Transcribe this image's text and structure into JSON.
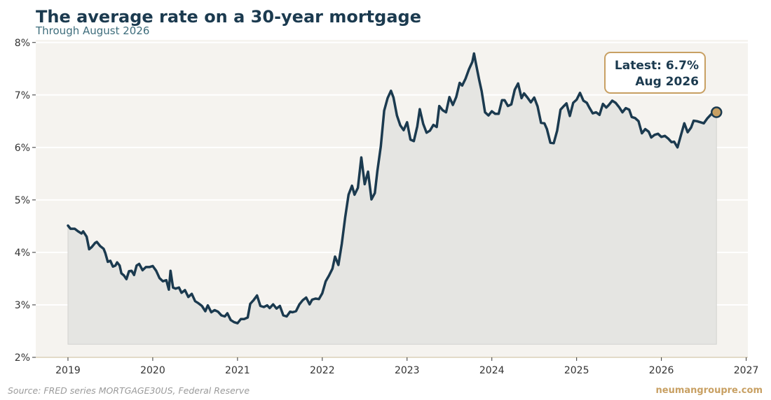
{
  "header": {
    "title": "The average rate on a 30-year mortgage",
    "subtitle": "Through August 2026"
  },
  "callout": {
    "line1": "Latest: 6.7%",
    "line2": "Aug 2026"
  },
  "footer": {
    "source": "Source: FRED series MORTGAGE30US, Federal Reserve",
    "credit": "neumangroupre.com"
  },
  "colors": {
    "line": "#1b3a4f",
    "fill": "#e5e5e2",
    "plot_background": "#f5f3ef",
    "grid": "#ffffff",
    "accent": "#c8a063",
    "axis_text": "#333333"
  },
  "chart_data": {
    "type": "area",
    "title": "The average rate on a 30-year mortgage",
    "subtitle": "Through August 2026",
    "xlabel": "",
    "ylabel": "",
    "x_ticks": [
      "2019",
      "2020",
      "2021",
      "2022",
      "2023",
      "2024",
      "2025",
      "2026",
      "2027"
    ],
    "y_ticks": [
      "2%",
      "3%",
      "4%",
      "5%",
      "6%",
      "7%",
      "8%"
    ],
    "xlim": [
      2018.62,
      2027.02
    ],
    "ylim": [
      2.0,
      8.05
    ],
    "grid": "horizontal",
    "latest_point": {
      "x": 2026.65,
      "y": 6.67
    },
    "series": [
      {
        "points": [
          [
            2019.0,
            4.51
          ],
          [
            2019.03,
            4.45
          ],
          [
            2019.08,
            4.45
          ],
          [
            2019.12,
            4.4
          ],
          [
            2019.16,
            4.36
          ],
          [
            2019.18,
            4.4
          ],
          [
            2019.22,
            4.3
          ],
          [
            2019.25,
            4.06
          ],
          [
            2019.28,
            4.1
          ],
          [
            2019.32,
            4.18
          ],
          [
            2019.34,
            4.2
          ],
          [
            2019.38,
            4.12
          ],
          [
            2019.42,
            4.07
          ],
          [
            2019.44,
            3.99
          ],
          [
            2019.47,
            3.82
          ],
          [
            2019.5,
            3.84
          ],
          [
            2019.53,
            3.73
          ],
          [
            2019.56,
            3.75
          ],
          [
            2019.58,
            3.81
          ],
          [
            2019.61,
            3.75
          ],
          [
            2019.63,
            3.6
          ],
          [
            2019.66,
            3.56
          ],
          [
            2019.69,
            3.49
          ],
          [
            2019.72,
            3.64
          ],
          [
            2019.75,
            3.65
          ],
          [
            2019.78,
            3.57
          ],
          [
            2019.81,
            3.75
          ],
          [
            2019.84,
            3.78
          ],
          [
            2019.88,
            3.66
          ],
          [
            2019.92,
            3.72
          ],
          [
            2019.96,
            3.72
          ],
          [
            2020.0,
            3.74
          ],
          [
            2020.04,
            3.65
          ],
          [
            2020.08,
            3.51
          ],
          [
            2020.12,
            3.45
          ],
          [
            2020.16,
            3.47
          ],
          [
            2020.19,
            3.29
          ],
          [
            2020.21,
            3.65
          ],
          [
            2020.24,
            3.33
          ],
          [
            2020.27,
            3.31
          ],
          [
            2020.31,
            3.33
          ],
          [
            2020.34,
            3.23
          ],
          [
            2020.38,
            3.28
          ],
          [
            2020.42,
            3.15
          ],
          [
            2020.46,
            3.21
          ],
          [
            2020.5,
            3.07
          ],
          [
            2020.54,
            3.03
          ],
          [
            2020.58,
            2.98
          ],
          [
            2020.62,
            2.88
          ],
          [
            2020.65,
            2.99
          ],
          [
            2020.69,
            2.86
          ],
          [
            2020.73,
            2.9
          ],
          [
            2020.77,
            2.87
          ],
          [
            2020.81,
            2.8
          ],
          [
            2020.85,
            2.78
          ],
          [
            2020.88,
            2.84
          ],
          [
            2020.92,
            2.71
          ],
          [
            2020.96,
            2.67
          ],
          [
            2021.0,
            2.65
          ],
          [
            2021.04,
            2.73
          ],
          [
            2021.08,
            2.73
          ],
          [
            2021.12,
            2.76
          ],
          [
            2021.15,
            3.02
          ],
          [
            2021.19,
            3.09
          ],
          [
            2021.23,
            3.18
          ],
          [
            2021.27,
            2.98
          ],
          [
            2021.31,
            2.96
          ],
          [
            2021.35,
            2.99
          ],
          [
            2021.38,
            2.94
          ],
          [
            2021.42,
            3.01
          ],
          [
            2021.46,
            2.93
          ],
          [
            2021.5,
            2.98
          ],
          [
            2021.54,
            2.8
          ],
          [
            2021.58,
            2.78
          ],
          [
            2021.62,
            2.87
          ],
          [
            2021.65,
            2.86
          ],
          [
            2021.69,
            2.88
          ],
          [
            2021.73,
            3.01
          ],
          [
            2021.77,
            3.09
          ],
          [
            2021.81,
            3.14
          ],
          [
            2021.85,
            3.01
          ],
          [
            2021.88,
            3.1
          ],
          [
            2021.92,
            3.12
          ],
          [
            2021.96,
            3.11
          ],
          [
            2022.0,
            3.22
          ],
          [
            2022.04,
            3.45
          ],
          [
            2022.08,
            3.56
          ],
          [
            2022.12,
            3.69
          ],
          [
            2022.15,
            3.92
          ],
          [
            2022.19,
            3.76
          ],
          [
            2022.23,
            4.16
          ],
          [
            2022.27,
            4.67
          ],
          [
            2022.31,
            5.1
          ],
          [
            2022.35,
            5.27
          ],
          [
            2022.38,
            5.1
          ],
          [
            2022.42,
            5.23
          ],
          [
            2022.46,
            5.81
          ],
          [
            2022.5,
            5.3
          ],
          [
            2022.54,
            5.54
          ],
          [
            2022.58,
            5.01
          ],
          [
            2022.62,
            5.13
          ],
          [
            2022.65,
            5.55
          ],
          [
            2022.69,
            6.02
          ],
          [
            2022.73,
            6.7
          ],
          [
            2022.77,
            6.94
          ],
          [
            2022.81,
            7.08
          ],
          [
            2022.84,
            6.95
          ],
          [
            2022.88,
            6.61
          ],
          [
            2022.92,
            6.42
          ],
          [
            2022.96,
            6.33
          ],
          [
            2023.0,
            6.48
          ],
          [
            2023.04,
            6.15
          ],
          [
            2023.08,
            6.12
          ],
          [
            2023.12,
            6.4
          ],
          [
            2023.15,
            6.73
          ],
          [
            2023.19,
            6.45
          ],
          [
            2023.23,
            6.28
          ],
          [
            2023.27,
            6.32
          ],
          [
            2023.31,
            6.43
          ],
          [
            2023.35,
            6.39
          ],
          [
            2023.38,
            6.79
          ],
          [
            2023.42,
            6.71
          ],
          [
            2023.46,
            6.67
          ],
          [
            2023.5,
            6.96
          ],
          [
            2023.54,
            6.81
          ],
          [
            2023.58,
            6.96
          ],
          [
            2023.62,
            7.23
          ],
          [
            2023.65,
            7.18
          ],
          [
            2023.69,
            7.31
          ],
          [
            2023.73,
            7.49
          ],
          [
            2023.77,
            7.63
          ],
          [
            2023.79,
            7.79
          ],
          [
            2023.81,
            7.62
          ],
          [
            2023.85,
            7.29
          ],
          [
            2023.88,
            7.07
          ],
          [
            2023.92,
            6.67
          ],
          [
            2023.96,
            6.61
          ],
          [
            2024.0,
            6.69
          ],
          [
            2024.04,
            6.64
          ],
          [
            2024.08,
            6.64
          ],
          [
            2024.12,
            6.9
          ],
          [
            2024.15,
            6.9
          ],
          [
            2024.19,
            6.79
          ],
          [
            2024.23,
            6.82
          ],
          [
            2024.27,
            7.1
          ],
          [
            2024.31,
            7.22
          ],
          [
            2024.35,
            6.94
          ],
          [
            2024.38,
            7.03
          ],
          [
            2024.42,
            6.95
          ],
          [
            2024.46,
            6.86
          ],
          [
            2024.5,
            6.95
          ],
          [
            2024.54,
            6.78
          ],
          [
            2024.58,
            6.47
          ],
          [
            2024.62,
            6.46
          ],
          [
            2024.65,
            6.35
          ],
          [
            2024.69,
            6.09
          ],
          [
            2024.73,
            6.08
          ],
          [
            2024.77,
            6.32
          ],
          [
            2024.81,
            6.72
          ],
          [
            2024.85,
            6.79
          ],
          [
            2024.88,
            6.84
          ],
          [
            2024.92,
            6.6
          ],
          [
            2024.96,
            6.85
          ],
          [
            2025.0,
            6.91
          ],
          [
            2025.04,
            7.04
          ],
          [
            2025.08,
            6.89
          ],
          [
            2025.12,
            6.85
          ],
          [
            2025.15,
            6.76
          ],
          [
            2025.19,
            6.65
          ],
          [
            2025.23,
            6.67
          ],
          [
            2025.27,
            6.62
          ],
          [
            2025.31,
            6.83
          ],
          [
            2025.35,
            6.76
          ],
          [
            2025.38,
            6.81
          ],
          [
            2025.42,
            6.89
          ],
          [
            2025.46,
            6.85
          ],
          [
            2025.5,
            6.77
          ],
          [
            2025.54,
            6.67
          ],
          [
            2025.58,
            6.75
          ],
          [
            2025.62,
            6.72
          ],
          [
            2025.65,
            6.58
          ],
          [
            2025.69,
            6.56
          ],
          [
            2025.73,
            6.5
          ],
          [
            2025.77,
            6.27
          ],
          [
            2025.81,
            6.35
          ],
          [
            2025.85,
            6.3
          ],
          [
            2025.88,
            6.19
          ],
          [
            2025.92,
            6.24
          ],
          [
            2025.96,
            6.26
          ],
          [
            2026.0,
            6.2
          ],
          [
            2026.04,
            6.22
          ],
          [
            2026.08,
            6.17
          ],
          [
            2026.12,
            6.1
          ],
          [
            2026.15,
            6.11
          ],
          [
            2026.19,
            6.0
          ],
          [
            2026.23,
            6.23
          ],
          [
            2026.27,
            6.46
          ],
          [
            2026.31,
            6.29
          ],
          [
            2026.35,
            6.38
          ],
          [
            2026.38,
            6.51
          ],
          [
            2026.42,
            6.5
          ],
          [
            2026.46,
            6.48
          ],
          [
            2026.5,
            6.46
          ],
          [
            2026.54,
            6.55
          ],
          [
            2026.58,
            6.62
          ],
          [
            2026.62,
            6.68
          ],
          [
            2026.65,
            6.67
          ]
        ]
      }
    ]
  }
}
